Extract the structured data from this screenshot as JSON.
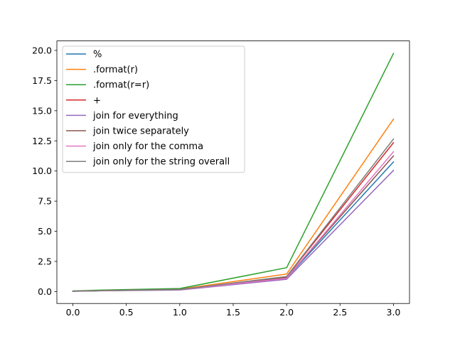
{
  "chart_data": {
    "type": "line",
    "title": "",
    "xlabel": "",
    "ylabel": "",
    "xlim": [
      -0.15,
      3.15
    ],
    "ylim": [
      -0.99,
      20.79
    ],
    "xticks": [
      0.0,
      0.5,
      1.0,
      1.5,
      2.0,
      2.5,
      3.0
    ],
    "xtick_labels": [
      "0.0",
      "0.5",
      "1.0",
      "1.5",
      "2.0",
      "2.5",
      "3.0"
    ],
    "yticks": [
      0.0,
      2.5,
      5.0,
      7.5,
      10.0,
      12.5,
      15.0,
      17.5,
      20.0
    ],
    "ytick_labels": [
      "0.0",
      "2.5",
      "5.0",
      "7.5",
      "10.0",
      "12.5",
      "15.0",
      "17.5",
      "20.0"
    ],
    "grid": false,
    "legend_position": "top-left",
    "x": [
      0,
      0.25,
      1,
      2,
      3
    ],
    "series": [
      {
        "name": "%",
        "color": "#1f77b4",
        "values": [
          0.03,
          0.07,
          0.17,
          1.12,
          10.75
        ]
      },
      {
        "name": ".format(r)",
        "color": "#ff7f0e",
        "values": [
          0.04,
          0.09,
          0.2,
          1.45,
          14.3
        ]
      },
      {
        "name": ".format(r=r)",
        "color": "#2ca02c",
        "values": [
          0.05,
          0.12,
          0.25,
          1.98,
          19.75
        ]
      },
      {
        "name": "+",
        "color": "#d62728",
        "values": [
          0.03,
          0.07,
          0.17,
          1.22,
          12.35
        ]
      },
      {
        "name": "join for everything",
        "color": "#9467bd",
        "values": [
          0.02,
          0.06,
          0.13,
          1.02,
          10.05
        ]
      },
      {
        "name": "join twice separately",
        "color": "#8c564b",
        "values": [
          0.03,
          0.07,
          0.16,
          1.15,
          11.25
        ]
      },
      {
        "name": "join only for the comma",
        "color": "#e377c2",
        "values": [
          0.03,
          0.07,
          0.16,
          1.1,
          11.6
        ]
      },
      {
        "name": "join only for the string overall",
        "color": "#7f7f7f",
        "values": [
          0.03,
          0.07,
          0.17,
          1.25,
          12.65
        ]
      }
    ]
  }
}
